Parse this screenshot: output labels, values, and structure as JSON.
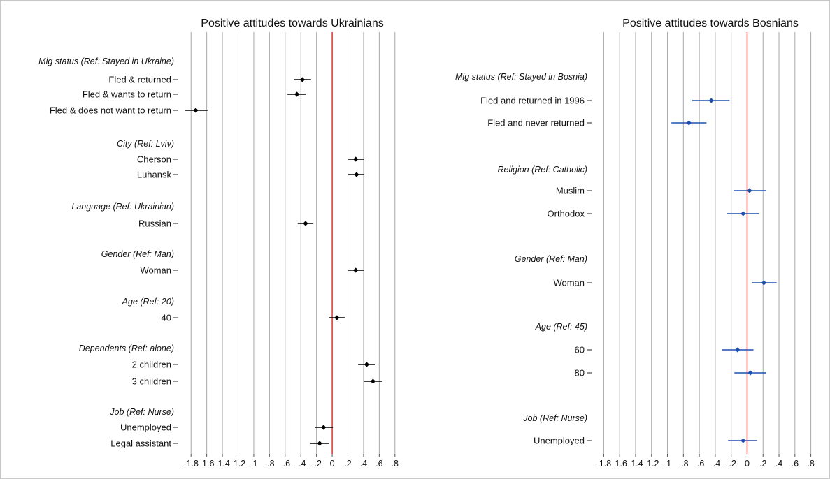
{
  "chart_data": [
    {
      "type": "coefficient-plot",
      "title": "Positive attitudes towards Ukrainians",
      "xlim": [
        -1.9,
        0.9
      ],
      "x_ticks": [
        -1.8,
        -1.6,
        -1.4,
        -1.2,
        -1,
        -0.8,
        -0.6,
        -0.4,
        -0.2,
        0,
        0.2,
        0.4,
        0.6,
        0.8
      ],
      "x_tick_labels": [
        "-1.8",
        "-1.6",
        "-1.4",
        "-1.2",
        "-1",
        "-.8",
        "-.6",
        "-.4",
        "-.2",
        "0",
        ".2",
        ".4",
        ".6",
        ".8"
      ],
      "grid": true,
      "reference_line": 0,
      "reference_color": "#d62a2a",
      "marker_color": "#000000",
      "rows": [
        {
          "kind": "group",
          "label": "Mig status (Ref: Stayed in Ukraine)"
        },
        {
          "kind": "level",
          "label": "Fled & returned",
          "estimate": -0.38,
          "ci": [
            -0.49,
            -0.27
          ]
        },
        {
          "kind": "level",
          "label": "Fled & wants to return",
          "estimate": -0.45,
          "ci": [
            -0.57,
            -0.34
          ]
        },
        {
          "kind": "level",
          "label": "Fled & does not want to return",
          "estimate": -1.74,
          "ci": [
            -1.88,
            -1.59
          ]
        },
        {
          "kind": "group",
          "label": "City (Ref: Lviv)"
        },
        {
          "kind": "level",
          "label": "Cherson",
          "estimate": 0.3,
          "ci": [
            0.2,
            0.41
          ]
        },
        {
          "kind": "level",
          "label": "Luhansk",
          "estimate": 0.31,
          "ci": [
            0.2,
            0.41
          ]
        },
        {
          "kind": "group",
          "label": "Language (Ref: Ukrainian)"
        },
        {
          "kind": "level",
          "label": "Russian",
          "estimate": -0.34,
          "ci": [
            -0.44,
            -0.24
          ]
        },
        {
          "kind": "group",
          "label": "Gender (Ref: Man)"
        },
        {
          "kind": "level",
          "label": "Woman",
          "estimate": 0.3,
          "ci": [
            0.2,
            0.4
          ]
        },
        {
          "kind": "group",
          "label": "Age (Ref: 20)"
        },
        {
          "kind": "level",
          "label": "40",
          "estimate": 0.06,
          "ci": [
            -0.04,
            0.16
          ]
        },
        {
          "kind": "group",
          "label": "Dependents (Ref: alone)"
        },
        {
          "kind": "level",
          "label": "2 children",
          "estimate": 0.44,
          "ci": [
            0.33,
            0.55
          ]
        },
        {
          "kind": "level",
          "label": "3 children",
          "estimate": 0.52,
          "ci": [
            0.4,
            0.64
          ]
        },
        {
          "kind": "group",
          "label": "Job (Ref: Nurse)"
        },
        {
          "kind": "level",
          "label": "Unemployed",
          "estimate": -0.11,
          "ci": [
            -0.22,
            0.01
          ]
        },
        {
          "kind": "level",
          "label": "Legal assistant",
          "estimate": -0.16,
          "ci": [
            -0.28,
            -0.04
          ]
        }
      ]
    },
    {
      "type": "coefficient-plot",
      "title": "Positive attitudes towards Bosnians",
      "xlim": [
        -1.9,
        0.9
      ],
      "x_ticks": [
        -1.8,
        -1.6,
        -1.4,
        -1.2,
        -1,
        -0.8,
        -0.6,
        -0.4,
        -0.2,
        0,
        0.2,
        0.4,
        0.6,
        0.8
      ],
      "x_tick_labels": [
        "-1.8",
        "-1.6",
        "-1.4",
        "-1.2",
        "-1",
        "-.8",
        "-.6",
        "-.4",
        "-.2",
        "0",
        ".2",
        ".4",
        ".6",
        ".8"
      ],
      "grid": true,
      "reference_line": 0,
      "reference_color": "#d62a2a",
      "marker_color": "#1f4fb0",
      "rows": [
        {
          "kind": "group",
          "label": "Mig status (Ref: Stayed in Bosnia)"
        },
        {
          "kind": "level",
          "label": "Fled and returned in 1996",
          "estimate": -0.45,
          "ci": [
            -0.69,
            -0.22
          ]
        },
        {
          "kind": "level",
          "label": "Fled and never returned",
          "estimate": -0.73,
          "ci": [
            -0.95,
            -0.51
          ]
        },
        {
          "kind": "group",
          "label": "Religion (Ref: Catholic)"
        },
        {
          "kind": "level",
          "label": "Muslim",
          "estimate": 0.03,
          "ci": [
            -0.17,
            0.24
          ]
        },
        {
          "kind": "level",
          "label": "Orthodox",
          "estimate": -0.05,
          "ci": [
            -0.25,
            0.15
          ]
        },
        {
          "kind": "group",
          "label": "Gender (Ref: Man)"
        },
        {
          "kind": "level",
          "label": "Woman",
          "estimate": 0.21,
          "ci": [
            0.06,
            0.37
          ]
        },
        {
          "kind": "group",
          "label": "Age (Ref: 45)"
        },
        {
          "kind": "level",
          "label": "60",
          "estimate": -0.12,
          "ci": [
            -0.32,
            0.08
          ]
        },
        {
          "kind": "level",
          "label": "80",
          "estimate": 0.04,
          "ci": [
            -0.16,
            0.24
          ]
        },
        {
          "kind": "group",
          "label": "Job (Ref: Nurse)"
        },
        {
          "kind": "level",
          "label": "Unemployed",
          "estimate": -0.05,
          "ci": [
            -0.24,
            0.12
          ]
        }
      ]
    }
  ]
}
